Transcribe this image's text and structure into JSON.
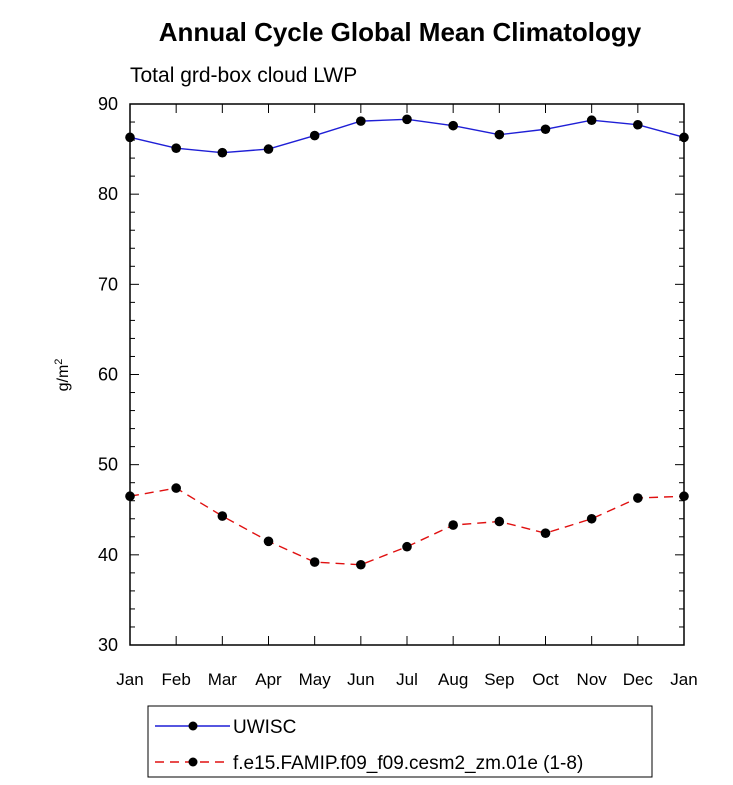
{
  "chart_data": {
    "type": "line",
    "title": "Annual Cycle Global Mean Climatology",
    "subtitle": "Total grd-box cloud LWP",
    "xlabel": "",
    "ylabel": "g/m",
    "ylabel_superscript": "2",
    "ylim": [
      30,
      90
    ],
    "yticks": [
      "30",
      "40",
      "50",
      "60",
      "70",
      "80",
      "90"
    ],
    "categories": [
      "Jan",
      "Feb",
      "Mar",
      "Apr",
      "May",
      "Jun",
      "Jul",
      "Aug",
      "Sep",
      "Oct",
      "Nov",
      "Dec",
      "Jan"
    ],
    "grid": false,
    "legend_position": "bottom",
    "series": [
      {
        "name": "UWISC",
        "color": "#1f1fd6",
        "dash": "solid",
        "values": [
          86.3,
          85.1,
          84.6,
          85.0,
          86.5,
          88.1,
          88.3,
          87.6,
          86.6,
          87.2,
          88.2,
          87.7,
          86.3
        ]
      },
      {
        "name": "f.e15.FAMIP.f09_f09.cesm2_zm.01e (1-8)",
        "color": "#e01010",
        "dash": "dashed",
        "values": [
          46.5,
          47.4,
          44.3,
          41.5,
          39.2,
          38.9,
          40.9,
          43.3,
          43.7,
          42.4,
          44.0,
          46.3,
          46.5
        ]
      }
    ]
  }
}
